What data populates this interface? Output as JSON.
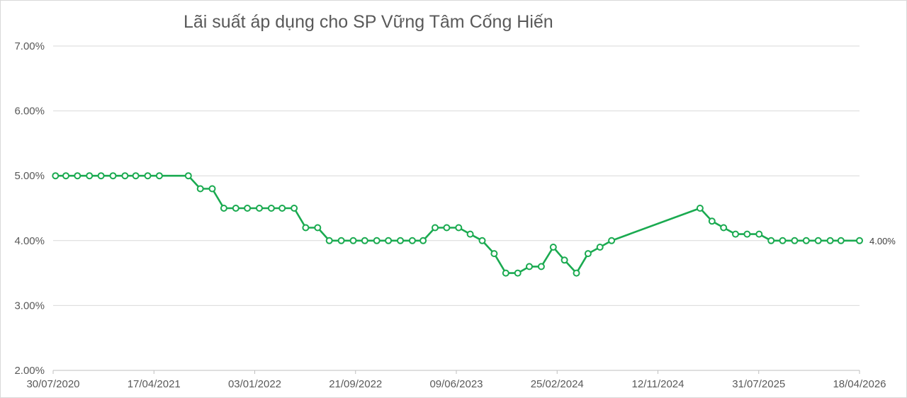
{
  "chart_data": {
    "type": "line",
    "title": "Lãi suất áp dụng cho SP Vững Tâm Cống Hiến",
    "xlabel": "",
    "ylabel": "",
    "x_axis_type": "date",
    "x_ticks": [
      "30/07/2020",
      "17/04/2021",
      "03/01/2022",
      "21/09/2022",
      "09/06/2023",
      "25/02/2024",
      "12/11/2024",
      "31/07/2025",
      "18/04/2026"
    ],
    "xlim": [
      "2020-07-30",
      "2026-04-18"
    ],
    "y_ticks": [
      "2.00%",
      "3.00%",
      "4.00%",
      "5.00%",
      "6.00%",
      "7.00%"
    ],
    "ylim": [
      2.0,
      7.0
    ],
    "grid": true,
    "legend": "none",
    "line_color": "#1aaa50",
    "marker": "hollow-circle",
    "end_label": "4.00%",
    "series": [
      {
        "x": [
          "2020-08-05",
          "2020-09-01",
          "2020-10-01",
          "2020-11-01",
          "2020-12-01",
          "2021-01-01",
          "2021-02-01",
          "2021-03-01",
          "2021-04-01",
          "2021-05-01",
          "2021-07-15",
          "2021-08-15",
          "2021-09-15",
          "2021-10-15",
          "2021-11-15",
          "2021-12-15",
          "2022-01-15",
          "2022-02-15",
          "2022-03-15",
          "2022-04-15",
          "2022-05-15",
          "2022-06-15",
          "2022-07-15",
          "2022-08-15",
          "2022-09-15",
          "2022-10-15",
          "2022-11-15",
          "2022-12-15",
          "2023-01-15",
          "2023-02-15",
          "2023-03-15",
          "2023-04-15",
          "2023-05-15",
          "2023-06-15",
          "2023-07-15",
          "2023-08-15",
          "2023-09-15",
          "2023-10-15",
          "2023-11-15",
          "2023-12-15",
          "2024-01-15",
          "2024-02-15",
          "2024-03-15",
          "2024-04-15",
          "2024-05-15",
          "2024-06-15",
          "2024-07-15",
          "2025-03-01",
          "2025-04-01",
          "2025-05-01",
          "2025-06-01",
          "2025-07-01",
          "2025-08-01",
          "2025-09-01",
          "2025-10-01",
          "2025-11-01",
          "2025-12-01",
          "2026-01-01",
          "2026-02-01",
          "2026-03-01",
          "2026-04-18"
        ],
        "y": [
          5.0,
          5.0,
          5.0,
          5.0,
          5.0,
          5.0,
          5.0,
          5.0,
          5.0,
          5.0,
          5.0,
          4.8,
          4.8,
          4.5,
          4.5,
          4.5,
          4.5,
          4.5,
          4.5,
          4.5,
          4.2,
          4.2,
          4.0,
          4.0,
          4.0,
          4.0,
          4.0,
          4.0,
          4.0,
          4.0,
          4.0,
          4.2,
          4.2,
          4.2,
          4.1,
          4.0,
          3.8,
          3.5,
          3.5,
          3.6,
          3.6,
          3.9,
          3.7,
          3.5,
          3.8,
          3.9,
          4.0,
          4.5,
          4.3,
          4.2,
          4.1,
          4.1,
          4.1,
          4.0,
          4.0,
          4.0,
          4.0,
          4.0,
          4.0,
          4.0,
          4.0
        ]
      }
    ]
  }
}
